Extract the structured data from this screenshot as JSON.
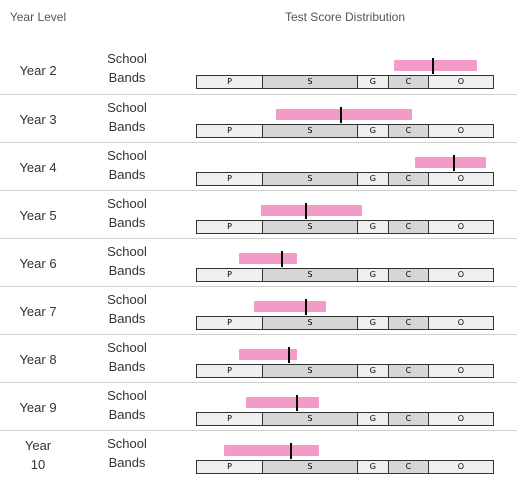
{
  "header": {
    "year_label": "Year Level",
    "dist_label": "Test Score Distribution"
  },
  "colors": {
    "range": "#f49ac9",
    "marker": "#000000",
    "band_light": "#efefef",
    "band_dark": "#d6d6d6"
  },
  "chart_data": {
    "type": "bullet",
    "title": "Test Score Distribution",
    "x_range": [
      0,
      1
    ],
    "bands": [
      {
        "name": "P",
        "start": 0.0,
        "end": 0.22,
        "color": "#efefef"
      },
      {
        "name": "S",
        "start": 0.22,
        "end": 0.54,
        "color": "#d6d6d6"
      },
      {
        "name": "G",
        "start": 0.54,
        "end": 0.645,
        "color": "#efefef"
      },
      {
        "name": "C",
        "start": 0.645,
        "end": 0.78,
        "color": "#d6d6d6"
      },
      {
        "name": "O",
        "start": 0.78,
        "end": 1.0,
        "color": "#efefef"
      }
    ],
    "rows": [
      {
        "year": "Year 2",
        "label_line1": "School",
        "label_line2": "Bands",
        "low": 0.67,
        "high": 0.95,
        "marker": 0.8
      },
      {
        "year": "Year 3",
        "label_line1": "School",
        "label_line2": "Bands",
        "low": 0.27,
        "high": 0.73,
        "marker": 0.49
      },
      {
        "year": "Year 4",
        "label_line1": "School",
        "label_line2": "Bands",
        "low": 0.74,
        "high": 0.98,
        "marker": 0.87
      },
      {
        "year": "Year 5",
        "label_line1": "School",
        "label_line2": "Bands",
        "low": 0.22,
        "high": 0.56,
        "marker": 0.37
      },
      {
        "year": "Year 6",
        "label_line1": "School",
        "label_line2": "Bands",
        "low": 0.145,
        "high": 0.34,
        "marker": 0.29
      },
      {
        "year": "Year 7",
        "label_line1": "School",
        "label_line2": "Bands",
        "low": 0.195,
        "high": 0.44,
        "marker": 0.37
      },
      {
        "year": "Year 8",
        "label_line1": "School",
        "label_line2": "Bands",
        "low": 0.145,
        "high": 0.34,
        "marker": 0.315
      },
      {
        "year": "Year 9",
        "label_line1": "School",
        "label_line2": "Bands",
        "low": 0.17,
        "high": 0.415,
        "marker": 0.34
      },
      {
        "year": "Year 10",
        "label_line1": "School",
        "label_line2": "Bands",
        "low": 0.095,
        "high": 0.415,
        "marker": 0.32
      }
    ]
  }
}
